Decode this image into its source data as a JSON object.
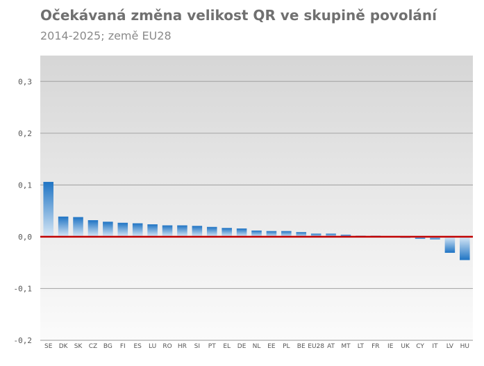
{
  "chart_data": {
    "type": "bar",
    "title": "Očekávaná změna velikost QR ve skupině povolání",
    "subtitle": "2014-2025; země EU28",
    "categories": [
      "SE",
      "DK",
      "SK",
      "CZ",
      "BG",
      "FI",
      "ES",
      "LU",
      "RO",
      "HR",
      "SI",
      "PT",
      "EL",
      "DE",
      "NL",
      "EE",
      "PL",
      "BE",
      "EU28",
      "AT",
      "MT",
      "LT",
      "FR",
      "IE",
      "UK",
      "CY",
      "IT",
      "LV",
      "HU"
    ],
    "values": [
      0.106,
      0.039,
      0.038,
      0.032,
      0.029,
      0.027,
      0.026,
      0.024,
      0.022,
      0.022,
      0.021,
      0.019,
      0.017,
      0.016,
      0.012,
      0.011,
      0.011,
      0.009,
      0.006,
      0.006,
      0.004,
      0.002,
      0.002,
      0.001,
      -0.002,
      -0.004,
      -0.005,
      -0.031,
      -0.045
    ],
    "ylim": [
      -0.2,
      0.35
    ],
    "yticks": [
      "-0,2",
      "-0,1",
      "0,0",
      "0,1",
      "0,2",
      "0,3"
    ],
    "ytick_values": [
      -0.2,
      -0.1,
      0.0,
      0.1,
      0.2,
      0.3
    ],
    "grid": true,
    "xlabel": "",
    "ylabel": "",
    "colors": {
      "bar_top": "#1f74c4",
      "bar_bottom": "#d8e8f6",
      "zero_line": "#c00000",
      "grid": "#ababab",
      "bg_top": "#d6d6d6",
      "bg_bottom": "#fbfbfb"
    }
  }
}
